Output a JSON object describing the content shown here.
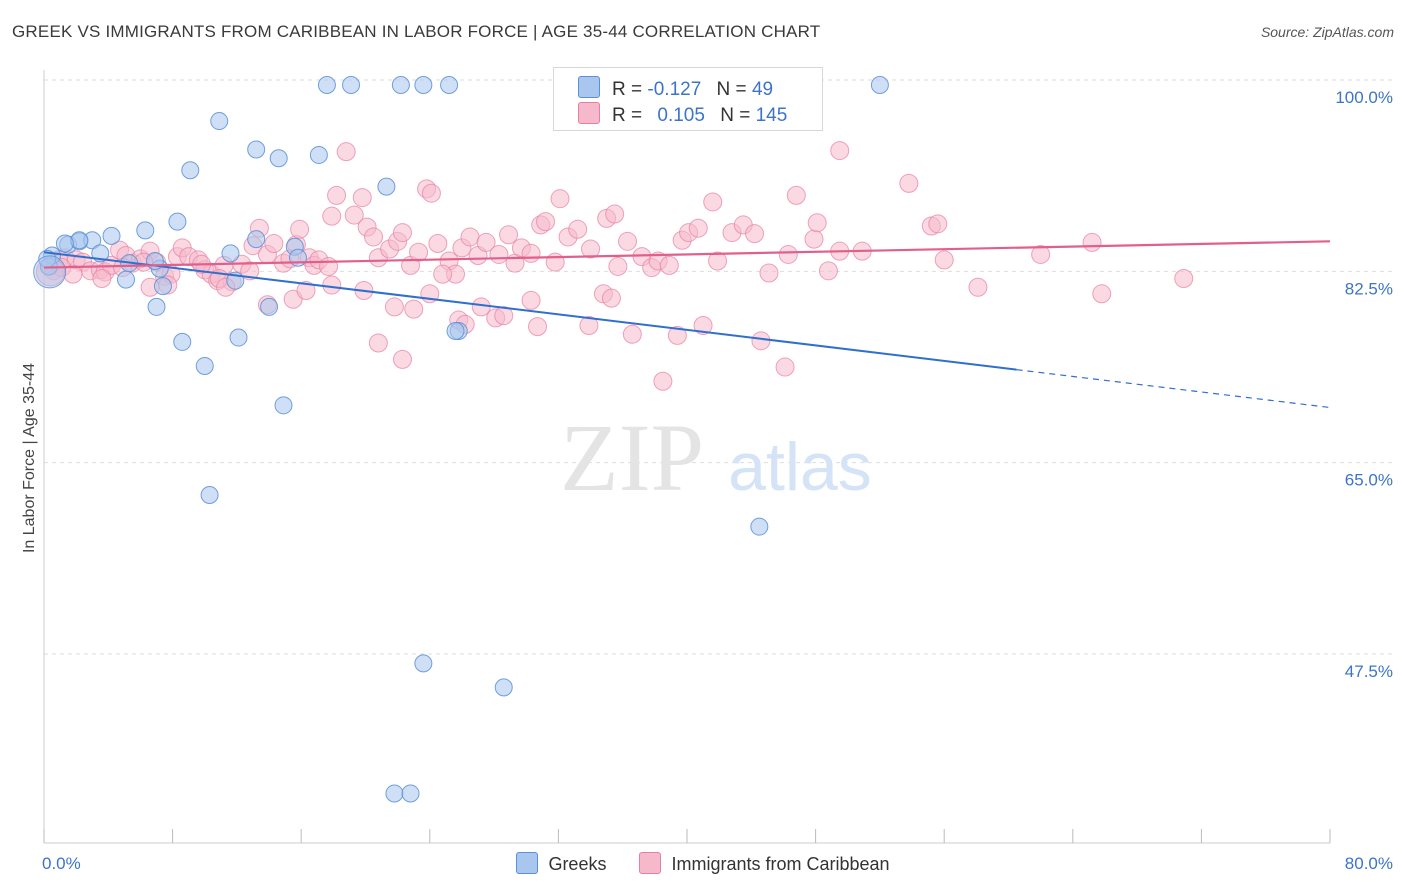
{
  "header": {
    "title": "GREEK VS IMMIGRANTS FROM CARIBBEAN IN LABOR FORCE | AGE 35-44 CORRELATION CHART",
    "source": "Source: ZipAtlas.com"
  },
  "legend": {
    "rows": [
      {
        "r_label": "R =",
        "r_value": "-0.127",
        "n_label": "N =",
        "n_value": "49",
        "color": "#a8c6ee",
        "stroke": "#5b8fd6"
      },
      {
        "r_label": "R =",
        "r_value": "0.105",
        "n_label": "N =",
        "n_value": "145",
        "color": "#f6b9cc",
        "stroke": "#e77fa2"
      }
    ]
  },
  "colors": {
    "blue_fill": "#a8c6ee",
    "blue_stroke": "#5b8fd6",
    "blue_line": "#2f6fce",
    "pink_fill": "#f6b9cc",
    "pink_stroke": "#e77fa2",
    "pink_line": "#e25f8c",
    "axis_text": "#3d74c9",
    "grid": "#dddddd"
  },
  "watermark": {
    "zip": "ZIP",
    "atlas": "atlas"
  },
  "chart_data": {
    "type": "scatter",
    "title": "GREEK VS IMMIGRANTS FROM CARIBBEAN IN LABOR FORCE | AGE 35-44 CORRELATION CHART",
    "xlabel": "",
    "ylabel": "In Labor Force | Age 35-44",
    "xlim": [
      0,
      80
    ],
    "ylim": [
      30,
      102
    ],
    "x_tick_labels": [
      "0.0%",
      "80.0%"
    ],
    "y_ticks": [
      47.5,
      65.0,
      82.5,
      100.0
    ],
    "y_tick_labels": [
      "47.5%",
      "65.0%",
      "82.5%",
      "100.0%"
    ],
    "grid": "horizontal dashed",
    "legend_position": "top-center",
    "series": [
      {
        "name": "Greeks",
        "color": "#a8c6ee",
        "trend": {
          "x0": 0,
          "y0": 85.8,
          "x1": 80,
          "y1": 71.6,
          "solid_until": 60.5
        },
        "points": [
          [
            0.5,
            85.5
          ],
          [
            1.5,
            86.5
          ],
          [
            2.2,
            86.8
          ],
          [
            3.0,
            86.9
          ],
          [
            4.2,
            87.3
          ],
          [
            6.3,
            87.8
          ],
          [
            2.2,
            86.9
          ],
          [
            1.3,
            86.6
          ],
          [
            3.5,
            85.7
          ],
          [
            5.3,
            84.8
          ],
          [
            5.1,
            83.3
          ],
          [
            7.2,
            84.3
          ],
          [
            6.9,
            85.0
          ],
          [
            7.4,
            82.7
          ],
          [
            7.0,
            80.8
          ],
          [
            8.3,
            88.6
          ],
          [
            8.6,
            77.6
          ],
          [
            9.1,
            93.3
          ],
          [
            10.9,
            97.8
          ],
          [
            11.6,
            85.7
          ],
          [
            11.9,
            83.2
          ],
          [
            12.1,
            78.0
          ],
          [
            13.2,
            87.0
          ],
          [
            13.2,
            95.2
          ],
          [
            14.0,
            80.8
          ],
          [
            14.6,
            94.4
          ],
          [
            15.6,
            86.3
          ],
          [
            15.8,
            85.3
          ],
          [
            17.1,
            94.7
          ],
          [
            10.0,
            75.4
          ],
          [
            14.9,
            71.8
          ],
          [
            10.3,
            63.6
          ],
          [
            17.6,
            101.1
          ],
          [
            19.1,
            101.1
          ],
          [
            22.2,
            101.1
          ],
          [
            23.6,
            101.1
          ],
          [
            25.2,
            101.1
          ],
          [
            21.3,
            91.8
          ],
          [
            25.8,
            78.6
          ],
          [
            25.6,
            78.6
          ],
          [
            23.6,
            48.2
          ],
          [
            28.6,
            46.0
          ],
          [
            21.8,
            36.3
          ],
          [
            22.8,
            36.3
          ],
          [
            43.0,
            101.1
          ],
          [
            52.0,
            101.1
          ],
          [
            44.5,
            60.7
          ],
          [
            0.3,
            84.5
          ],
          [
            0.2,
            85.2
          ]
        ]
      },
      {
        "name": "Immigrants from Caribbean",
        "color": "#f6b9cc",
        "trend": {
          "x0": 0,
          "y0": 84.4,
          "x1": 80,
          "y1": 86.8
        },
        "points": [
          [
            0.4,
            84.6
          ],
          [
            0.9,
            85.1
          ],
          [
            1.3,
            85.3
          ],
          [
            2.0,
            85.1
          ],
          [
            2.4,
            84.9
          ],
          [
            2.9,
            84.1
          ],
          [
            3.5,
            84.2
          ],
          [
            3.8,
            84.0
          ],
          [
            4.2,
            84.6
          ],
          [
            4.7,
            86.0
          ],
          [
            5.1,
            85.5
          ],
          [
            5.5,
            84.8
          ],
          [
            6.0,
            85.2
          ],
          [
            6.6,
            85.9
          ],
          [
            7.0,
            84.9
          ],
          [
            7.5,
            83.6
          ],
          [
            7.9,
            83.8
          ],
          [
            8.3,
            85.4
          ],
          [
            8.6,
            86.2
          ],
          [
            9.0,
            85.4
          ],
          [
            9.6,
            85.1
          ],
          [
            10.0,
            84.2
          ],
          [
            10.4,
            83.8
          ],
          [
            10.8,
            83.2
          ],
          [
            11.2,
            84.6
          ],
          [
            11.7,
            83.1
          ],
          [
            12.3,
            84.7
          ],
          [
            12.8,
            84.1
          ],
          [
            13.0,
            86.4
          ],
          [
            13.4,
            88.0
          ],
          [
            13.9,
            85.6
          ],
          [
            14.3,
            86.6
          ],
          [
            14.9,
            84.8
          ],
          [
            15.3,
            85.2
          ],
          [
            15.7,
            86.5
          ],
          [
            15.9,
            87.9
          ],
          [
            16.5,
            85.3
          ],
          [
            16.8,
            84.6
          ],
          [
            17.1,
            85.1
          ],
          [
            17.7,
            84.5
          ],
          [
            17.9,
            89.1
          ],
          [
            18.2,
            91.0
          ],
          [
            18.8,
            95.0
          ],
          [
            19.3,
            89.2
          ],
          [
            19.8,
            90.8
          ],
          [
            20.1,
            88.1
          ],
          [
            20.5,
            87.2
          ],
          [
            20.8,
            85.3
          ],
          [
            21.5,
            86.1
          ],
          [
            22.0,
            86.8
          ],
          [
            22.3,
            87.6
          ],
          [
            22.8,
            84.6
          ],
          [
            23.3,
            85.8
          ],
          [
            23.8,
            91.6
          ],
          [
            24.1,
            91.2
          ],
          [
            24.5,
            86.6
          ],
          [
            25.2,
            85.0
          ],
          [
            25.6,
            83.8
          ],
          [
            26.0,
            86.2
          ],
          [
            26.5,
            87.2
          ],
          [
            27.0,
            85.5
          ],
          [
            27.5,
            86.7
          ],
          [
            28.3,
            85.6
          ],
          [
            28.9,
            87.4
          ],
          [
            29.3,
            84.8
          ],
          [
            29.7,
            86.2
          ],
          [
            30.3,
            85.7
          ],
          [
            30.9,
            88.3
          ],
          [
            31.2,
            88.6
          ],
          [
            31.8,
            84.9
          ],
          [
            32.1,
            90.7
          ],
          [
            32.6,
            87.2
          ],
          [
            33.2,
            87.9
          ],
          [
            34.0,
            86.1
          ],
          [
            35.0,
            88.9
          ],
          [
            35.5,
            89.3
          ],
          [
            35.7,
            84.5
          ],
          [
            36.3,
            86.8
          ],
          [
            37.2,
            85.4
          ],
          [
            37.8,
            84.4
          ],
          [
            38.2,
            85.0
          ],
          [
            38.9,
            84.6
          ],
          [
            39.7,
            86.9
          ],
          [
            40.1,
            87.6
          ],
          [
            40.7,
            88.0
          ],
          [
            41.6,
            90.4
          ],
          [
            41.9,
            85.0
          ],
          [
            42.8,
            87.6
          ],
          [
            43.5,
            88.3
          ],
          [
            44.2,
            87.5
          ],
          [
            45.1,
            83.9
          ],
          [
            46.3,
            85.6
          ],
          [
            46.8,
            91.0
          ],
          [
            47.9,
            87.0
          ],
          [
            48.1,
            88.5
          ],
          [
            48.8,
            84.1
          ],
          [
            49.5,
            85.9
          ],
          [
            50.9,
            85.9
          ],
          [
            53.8,
            92.1
          ],
          [
            55.2,
            88.2
          ],
          [
            55.6,
            88.4
          ],
          [
            56.0,
            85.1
          ],
          [
            58.1,
            82.6
          ],
          [
            62.0,
            85.6
          ],
          [
            65.2,
            86.7
          ],
          [
            65.8,
            82.0
          ],
          [
            70.9,
            83.4
          ],
          [
            49.5,
            95.1
          ],
          [
            20.8,
            77.5
          ],
          [
            21.8,
            80.8
          ],
          [
            22.3,
            76.0
          ],
          [
            23.0,
            80.6
          ],
          [
            24.0,
            82.0
          ],
          [
            25.8,
            79.6
          ],
          [
            26.2,
            79.2
          ],
          [
            27.2,
            80.8
          ],
          [
            28.1,
            79.8
          ],
          [
            28.6,
            80.0
          ],
          [
            30.3,
            81.4
          ],
          [
            30.7,
            79.0
          ],
          [
            33.9,
            79.1
          ],
          [
            34.8,
            82.0
          ],
          [
            35.3,
            81.6
          ],
          [
            36.6,
            78.3
          ],
          [
            38.5,
            74.0
          ],
          [
            39.4,
            78.2
          ],
          [
            41.0,
            79.1
          ],
          [
            44.6,
            77.7
          ],
          [
            46.1,
            75.3
          ],
          [
            9.8,
            84.7
          ],
          [
            10.9,
            83.4
          ],
          [
            13.9,
            81.0
          ],
          [
            15.5,
            81.5
          ],
          [
            16.3,
            82.3
          ],
          [
            17.9,
            82.8
          ],
          [
            19.9,
            82.3
          ],
          [
            24.8,
            83.8
          ],
          [
            6.6,
            82.6
          ],
          [
            7.7,
            82.8
          ],
          [
            11.3,
            82.6
          ],
          [
            0.6,
            84.1
          ],
          [
            1.1,
            84.4
          ],
          [
            1.8,
            83.8
          ],
          [
            3.6,
            83.4
          ],
          [
            4.9,
            84.4
          ],
          [
            6.2,
            84.9
          ]
        ]
      }
    ]
  },
  "bottom_legend": [
    {
      "label": "Greeks",
      "color": "#a8c6ee",
      "stroke": "#5b8fd6"
    },
    {
      "label": "Immigrants from Caribbean",
      "color": "#f6b9cc",
      "stroke": "#e77fa2"
    }
  ]
}
